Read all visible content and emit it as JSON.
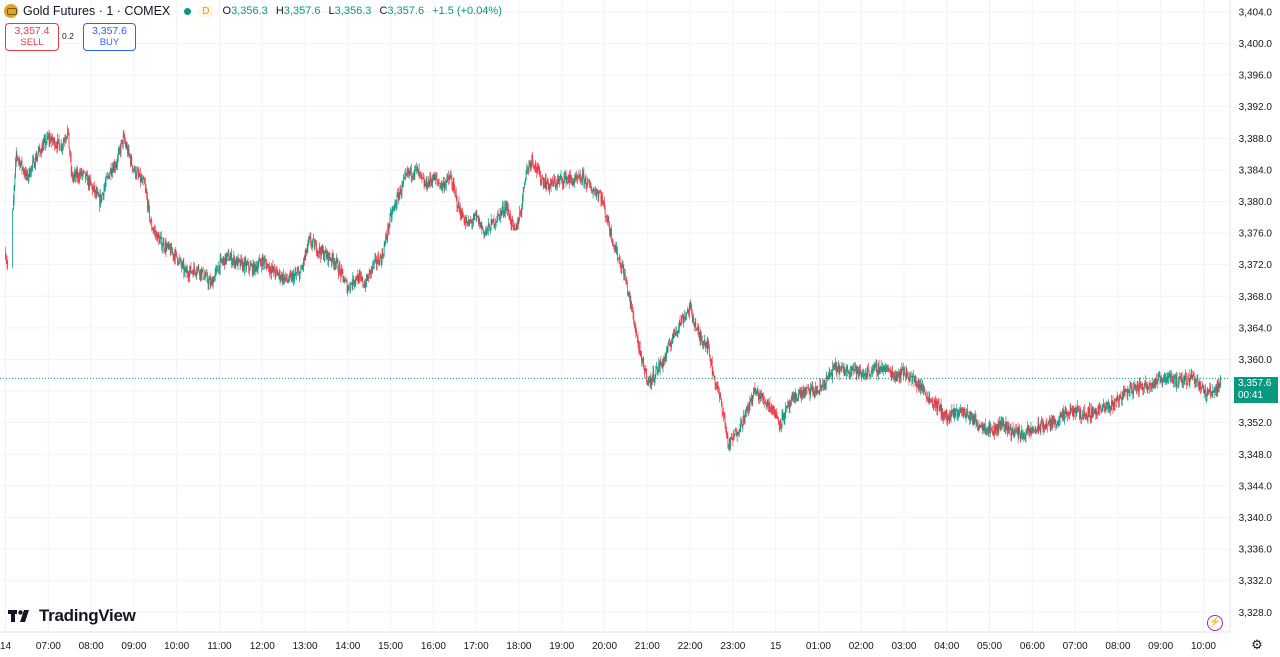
{
  "header": {
    "title": "Gold Futures · 1 · COMEX",
    "badge": "D",
    "ohlc": [
      {
        "label": "O",
        "value": "3,356.3"
      },
      {
        "label": "H",
        "value": "3,357.6"
      },
      {
        "label": "L",
        "value": "3,356.3"
      },
      {
        "label": "C",
        "value": "3,357.6"
      }
    ],
    "change": "+1.5 (+0.04%)"
  },
  "trade": {
    "sell_price": "3,357.4",
    "sell_label": "SELL",
    "spread": "0.2",
    "buy_price": "3,357.6",
    "buy_label": "BUY"
  },
  "last_price": {
    "value": "3,357.6",
    "countdown": "00:41"
  },
  "brand": "TradingView",
  "colors": {
    "up": "#089981",
    "down": "#f23645",
    "grid": "#f0f3fa",
    "price_line": "#089981"
  },
  "chart_data": {
    "type": "candlestick",
    "title": "",
    "xlabel": "",
    "ylabel": "",
    "ylim": [
      3325.5,
      3405.5
    ],
    "y_ticks": [
      "3,404.0",
      "3,400.0",
      "3,396.0",
      "3,392.0",
      "3,388.0",
      "3,384.0",
      "3,380.0",
      "3,376.0",
      "3,372.0",
      "3,368.0",
      "3,364.0",
      "3,360.0",
      "3,356.0",
      "3,352.0",
      "3,348.0",
      "3,344.0",
      "3,340.0",
      "3,336.0",
      "3,332.0",
      "3,328.0"
    ],
    "y_tick_values": [
      3404,
      3400,
      3396,
      3392,
      3388,
      3384,
      3380,
      3376,
      3372,
      3368,
      3364,
      3360,
      3356,
      3352,
      3348,
      3344,
      3340,
      3336,
      3332,
      3328
    ],
    "x_ticks": [
      "14",
      "07:00",
      "08:00",
      "09:00",
      "10:00",
      "11:00",
      "12:00",
      "13:00",
      "14:00",
      "15:00",
      "16:00",
      "17:00",
      "18:00",
      "19:00",
      "20:00",
      "21:00",
      "22:00",
      "23:00",
      "15",
      "01:00",
      "02:00",
      "03:00",
      "04:00",
      "05:00",
      "06:00",
      "07:00",
      "08:00",
      "09:00",
      "10:00"
    ],
    "x_tick_hours": [
      6.0,
      7.0,
      8.0,
      9.0,
      10.0,
      11.0,
      12.0,
      13.0,
      14.0,
      15.0,
      16.0,
      17.0,
      18.0,
      19.0,
      20.0,
      21.0,
      22.0,
      23.0,
      24.0,
      25.0,
      26.0,
      27.0,
      28.0,
      29.0,
      30.0,
      31.0,
      32.0,
      33.0,
      34.0
    ],
    "x_range_hours": [
      5.87,
      34.62
    ],
    "interval_minutes": 1,
    "price_path": [
      [
        6.0,
        3373.5
      ],
      [
        6.1,
        3370.0
      ],
      [
        6.15,
        3377.0
      ],
      [
        6.25,
        3386.0
      ],
      [
        6.5,
        3383.0
      ],
      [
        6.75,
        3386.0
      ],
      [
        7.0,
        3388.0
      ],
      [
        7.3,
        3387.0
      ],
      [
        7.45,
        3389.0
      ],
      [
        7.55,
        3383.0
      ],
      [
        7.8,
        3383.5
      ],
      [
        8.0,
        3382.0
      ],
      [
        8.2,
        3380.0
      ],
      [
        8.45,
        3384.0
      ],
      [
        8.6,
        3385.0
      ],
      [
        8.75,
        3388.0
      ],
      [
        9.0,
        3384.0
      ],
      [
        9.25,
        3382.0
      ],
      [
        9.4,
        3377.0
      ],
      [
        9.6,
        3375.0
      ],
      [
        9.8,
        3374.0
      ],
      [
        10.0,
        3373.0
      ],
      [
        10.2,
        3371.0
      ],
      [
        10.5,
        3371.5
      ],
      [
        10.8,
        3369.5
      ],
      [
        11.0,
        3372.0
      ],
      [
        11.2,
        3373.0
      ],
      [
        11.5,
        3372.0
      ],
      [
        11.8,
        3371.5
      ],
      [
        12.0,
        3372.5
      ],
      [
        12.3,
        3371.0
      ],
      [
        12.6,
        3370.0
      ],
      [
        12.9,
        3371.0
      ],
      [
        13.1,
        3375.0
      ],
      [
        13.4,
        3373.5
      ],
      [
        13.7,
        3372.5
      ],
      [
        14.0,
        3369.0
      ],
      [
        14.2,
        3370.5
      ],
      [
        14.4,
        3369.5
      ],
      [
        14.6,
        3372.0
      ],
      [
        14.8,
        3373.0
      ],
      [
        15.0,
        3378.0
      ],
      [
        15.2,
        3381.0
      ],
      [
        15.4,
        3383.5
      ],
      [
        15.6,
        3384.0
      ],
      [
        15.8,
        3382.0
      ],
      [
        16.0,
        3383.0
      ],
      [
        16.2,
        3382.0
      ],
      [
        16.4,
        3383.0
      ],
      [
        16.6,
        3379.0
      ],
      [
        16.8,
        3377.0
      ],
      [
        17.0,
        3378.0
      ],
      [
        17.2,
        3376.0
      ],
      [
        17.5,
        3378.0
      ],
      [
        17.7,
        3379.5
      ],
      [
        17.9,
        3376.0
      ],
      [
        18.05,
        3379.0
      ],
      [
        18.15,
        3383.5
      ],
      [
        18.3,
        3385.5
      ],
      [
        18.5,
        3383.0
      ],
      [
        18.7,
        3382.0
      ],
      [
        18.9,
        3382.5
      ],
      [
        19.1,
        3383.0
      ],
      [
        19.3,
        3382.5
      ],
      [
        19.5,
        3383.0
      ],
      [
        19.7,
        3381.5
      ],
      [
        19.9,
        3381.0
      ],
      [
        20.05,
        3378.0
      ],
      [
        20.25,
        3374.0
      ],
      [
        20.45,
        3371.0
      ],
      [
        20.65,
        3366.0
      ],
      [
        20.85,
        3360.0
      ],
      [
        21.05,
        3357.0
      ],
      [
        21.2,
        3358.5
      ],
      [
        21.4,
        3360.0
      ],
      [
        21.6,
        3363.0
      ],
      [
        21.8,
        3365.0
      ],
      [
        22.0,
        3366.5
      ],
      [
        22.2,
        3363.0
      ],
      [
        22.4,
        3362.0
      ],
      [
        22.55,
        3358.0
      ],
      [
        22.75,
        3354.0
      ],
      [
        22.9,
        3349.0
      ],
      [
        23.1,
        3351.0
      ],
      [
        23.3,
        3353.0
      ],
      [
        23.5,
        3356.0
      ],
      [
        23.7,
        3355.0
      ],
      [
        23.9,
        3354.0
      ],
      [
        24.1,
        3352.0
      ],
      [
        24.3,
        3354.0
      ],
      [
        24.5,
        3355.5
      ],
      [
        24.75,
        3356.0
      ],
      [
        25.0,
        3356.0
      ],
      [
        25.2,
        3357.5
      ],
      [
        25.4,
        3359.0
      ],
      [
        25.6,
        3358.5
      ],
      [
        25.8,
        3359.0
      ],
      [
        26.0,
        3358.0
      ],
      [
        26.2,
        3358.5
      ],
      [
        26.5,
        3359.0
      ],
      [
        26.8,
        3358.0
      ],
      [
        27.0,
        3358.5
      ],
      [
        27.2,
        3357.5
      ],
      [
        27.4,
        3356.5
      ],
      [
        27.6,
        3355.0
      ],
      [
        27.8,
        3354.0
      ],
      [
        28.0,
        3352.5
      ],
      [
        28.3,
        3353.5
      ],
      [
        28.5,
        3353.0
      ],
      [
        28.7,
        3352.0
      ],
      [
        28.9,
        3351.5
      ],
      [
        29.1,
        3351.0
      ],
      [
        29.3,
        3352.0
      ],
      [
        29.5,
        3351.0
      ],
      [
        29.8,
        3350.5
      ],
      [
        30.0,
        3351.0
      ],
      [
        30.2,
        3351.5
      ],
      [
        30.5,
        3352.0
      ],
      [
        30.8,
        3353.0
      ],
      [
        31.0,
        3353.5
      ],
      [
        31.2,
        3353.0
      ],
      [
        31.5,
        3353.5
      ],
      [
        31.8,
        3354.0
      ],
      [
        32.0,
        3355.0
      ],
      [
        32.2,
        3356.0
      ],
      [
        32.5,
        3356.5
      ],
      [
        32.8,
        3357.0
      ],
      [
        33.0,
        3357.5
      ],
      [
        33.2,
        3358.0
      ],
      [
        33.4,
        3357.0
      ],
      [
        33.6,
        3357.5
      ],
      [
        33.75,
        3358.0
      ],
      [
        33.9,
        3357.0
      ],
      [
        34.05,
        3355.5
      ],
      [
        34.2,
        3356.0
      ],
      [
        34.35,
        3356.5
      ],
      [
        34.4,
        3357.6
      ]
    ],
    "last_price": 3357.6,
    "grid": true,
    "price_axis": "right",
    "time_axis": "bottom"
  }
}
